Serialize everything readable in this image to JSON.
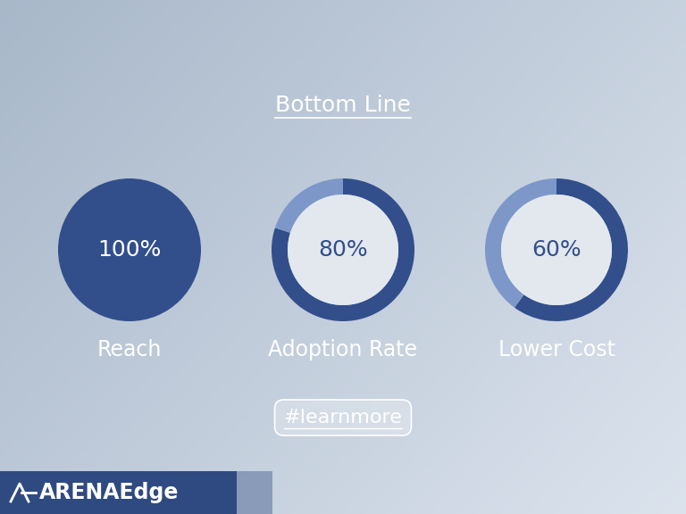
{
  "title": "Bottom Line",
  "chart_data": [
    {
      "type": "donut",
      "title": "Reach",
      "values": [
        100
      ],
      "value_labels": [
        "100%"
      ],
      "color": "#324f8c"
    },
    {
      "type": "donut",
      "title": "Adoption Rate",
      "values": [
        80
      ],
      "value_labels": [
        "80%"
      ],
      "color": "#324f8c"
    },
    {
      "type": "donut",
      "title": "Lower Cost",
      "values": [
        60
      ],
      "value_labels": [
        "60%"
      ],
      "color": "#324f8c"
    }
  ],
  "link": "#learnmore",
  "logo": "ARENAEdge"
}
